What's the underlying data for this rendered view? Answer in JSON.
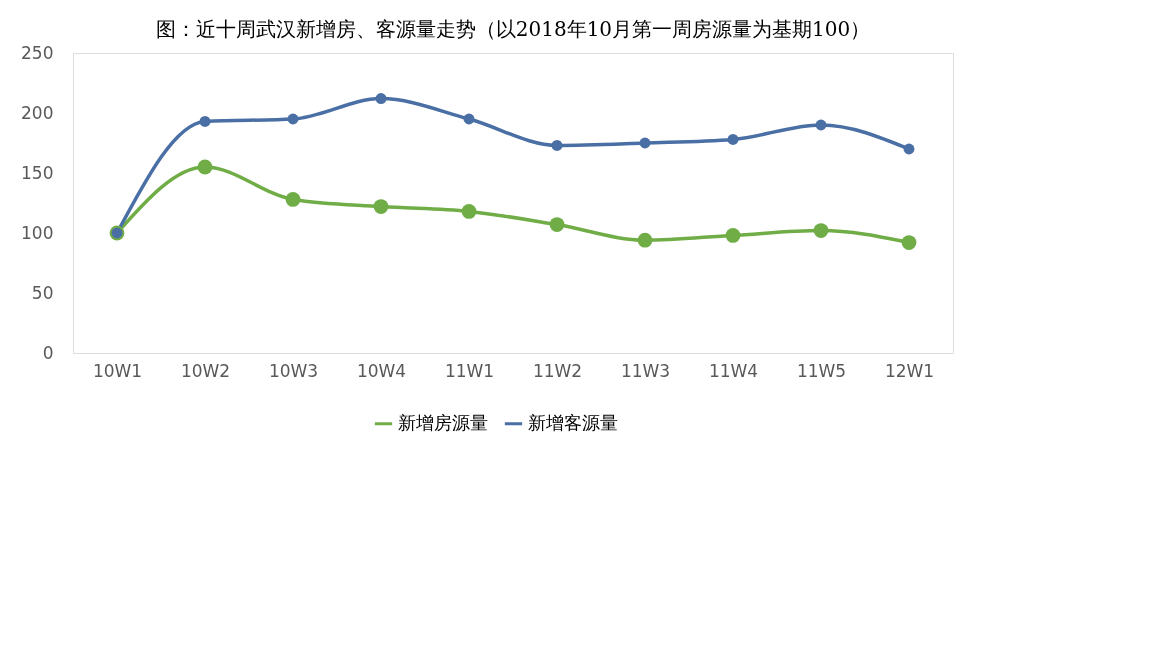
{
  "chart_data": {
    "type": "line",
    "title": "图：近十周武汉新增房、客源量走势（以2018年10月第一周房源量为基期100）",
    "categories": [
      "10W1",
      "10W2",
      "10W3",
      "10W4",
      "11W1",
      "11W2",
      "11W3",
      "11W4",
      "11W5",
      "12W1"
    ],
    "series": [
      {
        "name": "新增房源量",
        "color": "#70ad47",
        "values": [
          100,
          155,
          128,
          122,
          118,
          107,
          94,
          98,
          102,
          92
        ]
      },
      {
        "name": "新增客源量",
        "color": "#4a6fa5",
        "values": [
          100,
          193,
          195,
          212,
          195,
          173,
          175,
          178,
          190,
          170
        ]
      }
    ],
    "ylim": [
      0,
      250
    ],
    "yticks": [
      0,
      50,
      100,
      150,
      200,
      250
    ],
    "grid": false,
    "legend": "bottom",
    "marker": "circle",
    "line_style": "solid"
  }
}
